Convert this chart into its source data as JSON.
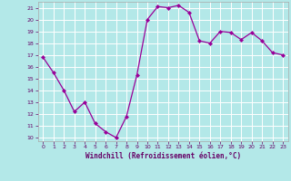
{
  "x": [
    0,
    1,
    2,
    3,
    4,
    5,
    6,
    7,
    8,
    9,
    10,
    11,
    12,
    13,
    14,
    15,
    16,
    17,
    18,
    19,
    20,
    21,
    22,
    23
  ],
  "y": [
    16.8,
    15.5,
    14.0,
    12.2,
    13.0,
    11.2,
    10.5,
    10.0,
    11.8,
    15.3,
    20.0,
    21.1,
    21.0,
    21.2,
    20.6,
    18.2,
    18.0,
    19.0,
    18.9,
    18.3,
    18.9,
    18.2,
    17.2,
    17.0
  ],
  "line_color": "#990099",
  "marker": "D",
  "marker_size": 2.0,
  "bg_color": "#b3e8e8",
  "grid_color": "#ffffff",
  "xlabel": "Windchill (Refroidissement éolien,°C)",
  "xlabel_color": "#660066",
  "tick_color": "#660066",
  "ylim": [
    9.7,
    21.5
  ],
  "yticks": [
    10,
    11,
    12,
    13,
    14,
    15,
    16,
    17,
    18,
    19,
    20,
    21
  ],
  "xlim": [
    -0.5,
    23.5
  ],
  "xticks": [
    0,
    1,
    2,
    3,
    4,
    5,
    6,
    7,
    8,
    9,
    10,
    11,
    12,
    13,
    14,
    15,
    16,
    17,
    18,
    19,
    20,
    21,
    22,
    23
  ],
  "border_color": "#aaaaaa"
}
